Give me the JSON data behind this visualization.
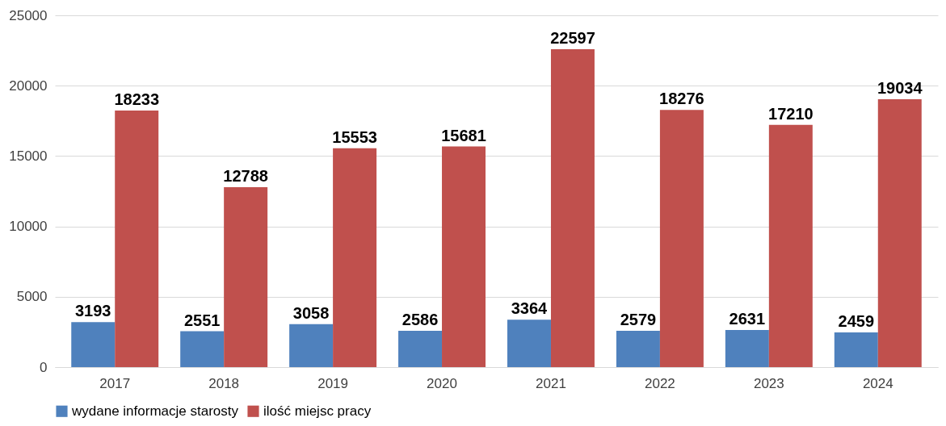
{
  "chart_data": {
    "type": "bar",
    "categories": [
      "2017",
      "2018",
      "2019",
      "2020",
      "2021",
      "2022",
      "2023",
      "2024"
    ],
    "series": [
      {
        "name": "wydane informacje starosty",
        "color": "#4f81bd",
        "values": [
          3193,
          2551,
          3058,
          2586,
          3364,
          2579,
          2631,
          2459
        ]
      },
      {
        "name": "ilość miejsc pracy",
        "color": "#c0504d",
        "values": [
          18233,
          12788,
          15553,
          15681,
          22597,
          18276,
          17210,
          19034
        ]
      }
    ],
    "ylim": [
      0,
      25000
    ],
    "yticks": [
      0,
      5000,
      10000,
      15000,
      20000,
      25000
    ],
    "grid": "y",
    "legend": "bottom",
    "data_labels": true
  }
}
